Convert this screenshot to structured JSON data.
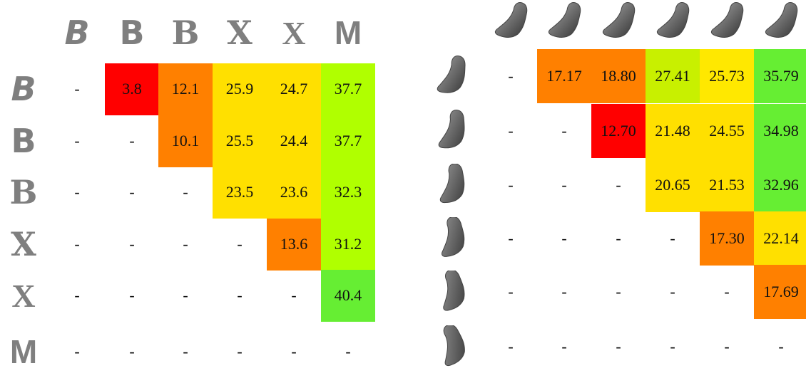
{
  "left_table": {
    "headers": [
      "B",
      "B",
      "B",
      "X",
      "X",
      "M"
    ],
    "rows": [
      [
        "-",
        "3.8",
        "12.1",
        "25.9",
        "24.7",
        "37.7"
      ],
      [
        "-",
        "-",
        "10.1",
        "25.5",
        "24.4",
        "37.7"
      ],
      [
        "-",
        "-",
        "-",
        "23.5",
        "23.6",
        "32.3"
      ],
      [
        "-",
        "-",
        "-",
        "-",
        "13.6",
        "31.2"
      ],
      [
        "-",
        "-",
        "-",
        "-",
        "-",
        "40.4"
      ],
      [
        "-",
        "-",
        "-",
        "-",
        "-",
        "-"
      ]
    ],
    "colors": [
      [
        null,
        "#ff0000",
        "#ff8000",
        "#ffe000",
        "#ffe000",
        "#b0ff00"
      ],
      [
        null,
        null,
        "#ff8000",
        "#ffe000",
        "#ffe000",
        "#b0ff00"
      ],
      [
        null,
        null,
        null,
        "#ffe000",
        "#ffe000",
        "#b0ff00"
      ],
      [
        null,
        null,
        null,
        null,
        "#ff8000",
        "#b0ff00"
      ],
      [
        null,
        null,
        null,
        null,
        null,
        "#66ee33"
      ],
      [
        null,
        null,
        null,
        null,
        null,
        null
      ]
    ]
  },
  "right_table": {
    "rows": [
      [
        "-",
        "17.17",
        "18.80",
        "27.41",
        "25.73",
        "35.79"
      ],
      [
        "-",
        "-",
        "12.70",
        "21.48",
        "24.55",
        "34.98"
      ],
      [
        "-",
        "-",
        "-",
        "20.65",
        "21.53",
        "32.96"
      ],
      [
        "-",
        "-",
        "-",
        "-",
        "17.30",
        "22.14"
      ],
      [
        "-",
        "-",
        "-",
        "-",
        "-",
        "17.69"
      ],
      [
        "-",
        "-",
        "-",
        "-",
        "-",
        "-"
      ]
    ],
    "colors": [
      [
        null,
        "#ff8000",
        "#ff8000",
        "#c8f000",
        "#ffe800",
        "#66ee33"
      ],
      [
        null,
        null,
        "#ff0000",
        "#ffe000",
        "#ffe000",
        "#66ee33"
      ],
      [
        null,
        null,
        null,
        "#ffe000",
        "#ffe000",
        "#66ee33"
      ],
      [
        null,
        null,
        null,
        null,
        "#ff8000",
        "#ffe000"
      ],
      [
        null,
        null,
        null,
        null,
        null,
        "#ff8000"
      ],
      [
        null,
        null,
        null,
        null,
        null,
        null
      ]
    ]
  }
}
